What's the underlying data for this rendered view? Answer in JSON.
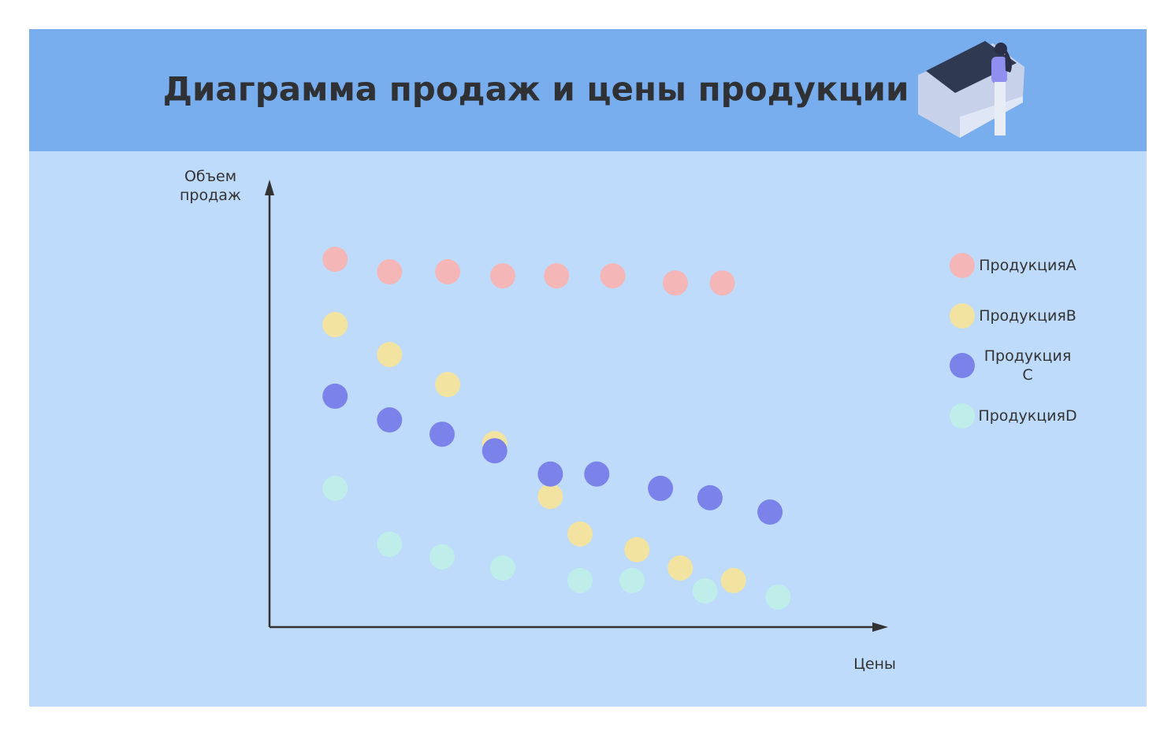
{
  "chart_data": {
    "type": "scatter",
    "title": "Диаграмма продаж и цены продукции",
    "x_label": "Цены",
    "y_label": "Объем продаж",
    "xlim": [
      0,
      100
    ],
    "ylim": [
      0,
      100
    ],
    "series": [
      {
        "name": "ПродукцияA",
        "color": "#f4b6b6",
        "x": [
          10.6,
          19.4,
          28.8,
          37.7,
          46.4,
          55.5,
          65.6,
          73.2
        ],
        "values": [
          82.2,
          79.4,
          79.4,
          78.5,
          78.5,
          78.5,
          76.9,
          76.9
        ]
      },
      {
        "name": "ПродукцияB",
        "color": "#f3e3a0",
        "x": [
          10.6,
          19.4,
          28.8,
          36.4,
          45.4,
          50.2,
          59.4,
          66.4,
          75.0
        ],
        "values": [
          67.6,
          60.9,
          54.2,
          41.0,
          29.2,
          20.8,
          17.3,
          13.2,
          10.4
        ]
      },
      {
        "name": "Продукция C",
        "color": "#7b83ea",
        "x": [
          10.6,
          19.4,
          27.9,
          36.4,
          45.4,
          52.9,
          63.2,
          71.2,
          80.9
        ],
        "values": [
          51.6,
          46.3,
          43.1,
          39.4,
          34.2,
          34.2,
          31.0,
          28.9,
          25.7
        ]
      },
      {
        "name": "ПродукцияD",
        "color": "#bfeeea",
        "x": [
          10.6,
          19.4,
          27.9,
          37.7,
          50.2,
          58.6,
          70.4,
          82.2
        ],
        "values": [
          31.0,
          18.5,
          15.7,
          13.2,
          10.4,
          10.4,
          8.1,
          6.7
        ]
      }
    ]
  }
}
